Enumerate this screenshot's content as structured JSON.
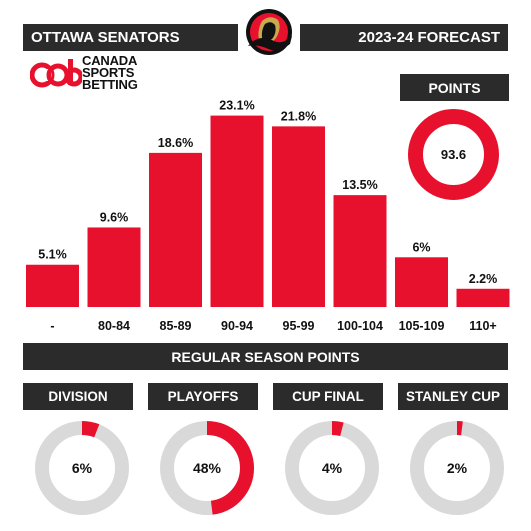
{
  "header": {
    "team": "OTTAWA SENATORS",
    "season": "2023-24 FORECAST"
  },
  "brand": {
    "mark": "csb",
    "line1": "CANADA",
    "line2": "SPORTS",
    "line3": "BETTING"
  },
  "points": {
    "title": "POINTS",
    "value": "93.6"
  },
  "colors": {
    "accent": "#e8112d",
    "dark": "#2b2b2b",
    "track": "#d9d9d9"
  },
  "chart_data": {
    "type": "bar",
    "categories": [
      "-",
      "80-84",
      "85-89",
      "90-94",
      "95-99",
      "100-104",
      "105-109",
      "110+"
    ],
    "values": [
      5.1,
      9.6,
      18.6,
      23.1,
      21.8,
      13.5,
      6,
      2.2
    ],
    "labels": [
      "5.1%",
      "9.6%",
      "18.6%",
      "23.1%",
      "21.8%",
      "13.5%",
      "6%",
      "2.2%"
    ],
    "xlabel": "REGULAR SEASON POINTS",
    "ylabel": "",
    "ylim": [
      0,
      24.5
    ],
    "grid": false
  },
  "stats": [
    {
      "label": "DIVISION",
      "value": 6,
      "display": "6%"
    },
    {
      "label": "PLAYOFFS",
      "value": 48,
      "display": "48%"
    },
    {
      "label": "CUP FINAL",
      "value": 4,
      "display": "4%"
    },
    {
      "label": "STANLEY CUP",
      "value": 2,
      "display": "2%"
    }
  ]
}
